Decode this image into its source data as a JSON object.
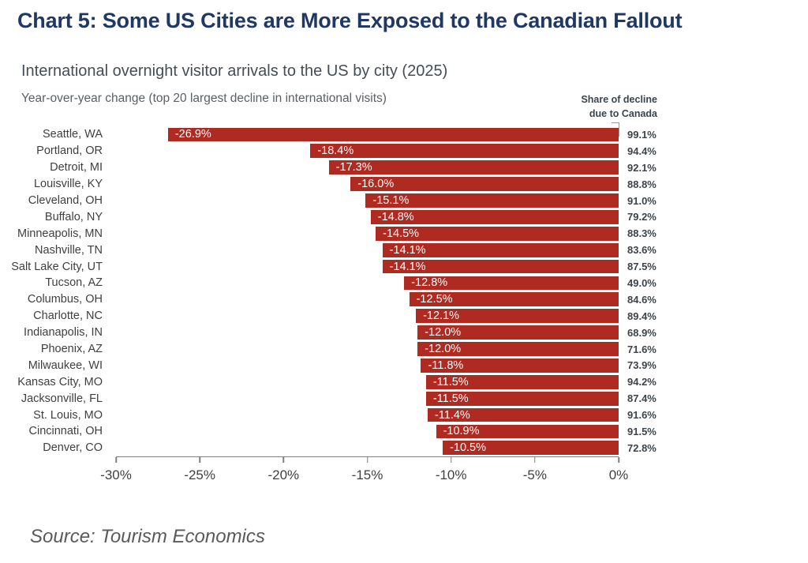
{
  "header": {
    "title": "Chart 5: Some US Cities are More Exposed to the Canadian Fallout"
  },
  "chart": {
    "subtitle": "International overnight visitor arrivals to the US by city (2025)",
    "subtitle2": "Year-over-year change (top 20 largest decline in international visits)",
    "right_header_line1": "Share of decline",
    "right_header_line2": "due to Canada"
  },
  "chart_data": {
    "type": "bar",
    "orientation": "horizontal",
    "title": "International overnight visitor arrivals to the US by city (2025)",
    "subtitle": "Year-over-year change (top 20 largest decline in international visits)",
    "categories": [
      "Seattle, WA",
      "Portland, OR",
      "Detroit, MI",
      "Louisville, KY",
      "Cleveland, OH",
      "Buffalo, NY",
      "Minneapolis, MN",
      "Nashville, TN",
      "Salt Lake City, UT",
      "Tucson, AZ",
      "Columbus, OH",
      "Charlotte, NC",
      "Indianapolis, IN",
      "Phoenix, AZ",
      "Milwaukee, WI",
      "Kansas City, MO",
      "Jacksonville, FL",
      "St. Louis, MO",
      "Cincinnati, OH",
      "Denver, CO"
    ],
    "series": [
      {
        "name": "Year-over-year change (%)",
        "values": [
          -26.9,
          -18.4,
          -17.3,
          -16.0,
          -15.1,
          -14.8,
          -14.5,
          -14.1,
          -14.1,
          -12.8,
          -12.5,
          -12.1,
          -12.0,
          -12.0,
          -11.8,
          -11.5,
          -11.5,
          -11.4,
          -10.9,
          -10.5
        ],
        "labels": [
          "-26.9%",
          "-18.4%",
          "-17.3%",
          "-16.0%",
          "-15.1%",
          "-14.8%",
          "-14.5%",
          "-14.1%",
          "-14.1%",
          "-12.8%",
          "-12.5%",
          "-12.1%",
          "-12.0%",
          "-12.0%",
          "-11.8%",
          "-11.5%",
          "-11.5%",
          "-11.4%",
          "-10.9%",
          "-10.5%"
        ]
      },
      {
        "name": "Share of decline due to Canada (%)",
        "values": [
          99.1,
          94.4,
          92.1,
          88.8,
          91.0,
          79.2,
          88.3,
          83.6,
          87.5,
          49.0,
          84.6,
          89.4,
          68.9,
          71.6,
          73.9,
          94.2,
          87.4,
          91.6,
          91.5,
          72.8
        ],
        "labels": [
          "99.1%",
          "94.4%",
          "92.1%",
          "88.8%",
          "91.0%",
          "79.2%",
          "88.3%",
          "83.6%",
          "87.5%",
          "49.0%",
          "84.6%",
          "89.4%",
          "68.9%",
          "71.6%",
          "73.9%",
          "94.2%",
          "87.4%",
          "91.6%",
          "91.5%",
          "72.8%"
        ],
        "position": "right-column"
      }
    ],
    "xlim": [
      -30,
      0
    ],
    "x_ticks": [
      "-30%",
      "-25%",
      "-20%",
      "-15%",
      "-10%",
      "-5%",
      "0%"
    ],
    "grid": false,
    "legend": false,
    "bar_color": "#af2a21",
    "bar_label_color": "#ffffff",
    "axis_color": "#7f7f7f",
    "title_color": "#1f3864"
  },
  "footer": {
    "source": "Source: Tourism Economics"
  }
}
